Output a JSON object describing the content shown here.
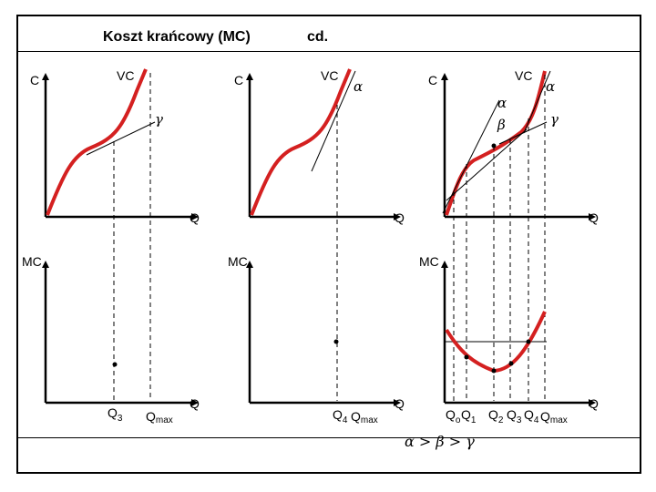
{
  "header": {
    "title": "Koszt  krańcowy  (MC)",
    "continued": "cd."
  },
  "colors": {
    "curve": "#d42020",
    "axis": "#000000",
    "guide": "#000000"
  },
  "panels": {
    "top_left": {
      "y_label": "C",
      "curve_label": "VC",
      "x_label": "Q",
      "angle_label": "γ"
    },
    "top_mid": {
      "y_label": "C",
      "curve_label": "VC",
      "x_label": "Q",
      "angle_label": "α"
    },
    "top_right": {
      "y_label": "C",
      "curve_label": "VC",
      "x_label": "Q",
      "angle_alpha": "α",
      "angle_alpha2": "α",
      "angle_beta": "β",
      "angle_gamma": "γ"
    },
    "bottom_left": {
      "y_label": "MC",
      "x_label": "Q",
      "q3": "Q",
      "q3_sub": "3",
      "qmax": "Q",
      "qmax_sub": "max"
    },
    "bottom_mid": {
      "y_label": "MC",
      "x_label": "Q",
      "q4": "Q",
      "q4_sub": "4",
      "qmax": "Q",
      "qmax_sub": "max"
    },
    "bottom_right": {
      "y_label": "MC",
      "x_label": "Q",
      "q0": "Q",
      "q0_sub": "o",
      "q1": "Q",
      "q1_sub": "1",
      "q2": "Q",
      "q2_sub": "2",
      "q3": "Q",
      "q3_sub": "3",
      "q4": "Q",
      "q4_sub": "4",
      "qmax": "Q",
      "qmax_sub": "max"
    }
  },
  "inequality": {
    "a": "α",
    "gt1": ">",
    "b": "β",
    "gt2": ">",
    "c": "γ"
  }
}
